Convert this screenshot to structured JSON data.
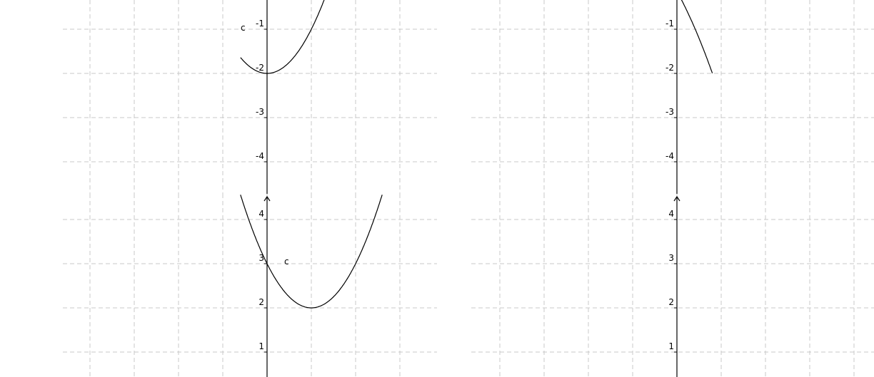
{
  "chart_data": [
    {
      "panel": "top-left",
      "type": "line",
      "function": "y = x^2 - 2",
      "x_range": [
        -0.6,
        1.3
      ],
      "ylim": [
        -4.6,
        0.6
      ],
      "y_ticks": [
        -1,
        -2,
        -3,
        -4
      ],
      "tick_labels": [
        "-1",
        "-2",
        "-3",
        "-4"
      ],
      "curve_label": "c",
      "grid": true
    },
    {
      "panel": "top-right",
      "type": "line",
      "function": "y = -c x^2, steep downward parabola",
      "x_range": [
        -2.8,
        0.8
      ],
      "ylim": [
        -4.6,
        0.6
      ],
      "y_ticks": [
        -1,
        -2,
        -3,
        -4
      ],
      "tick_labels": [
        "-1",
        "-2",
        "-3",
        "-4"
      ],
      "grid": true
    },
    {
      "panel": "bottom-left",
      "type": "line",
      "function": "y = (x - 1)^2 + 2",
      "x_range": [
        -0.6,
        2.6
      ],
      "ylim": [
        0,
        4.6
      ],
      "y_ticks": [
        1,
        2,
        3,
        4
      ],
      "tick_labels": [
        "1",
        "2",
        "3",
        "4"
      ],
      "curve_label": "c",
      "grid": true
    },
    {
      "panel": "bottom-right",
      "type": "line",
      "function": "none (empty axes)",
      "ylim": [
        0,
        4.6
      ],
      "y_ticks": [
        1,
        2,
        3,
        4
      ],
      "tick_labels": [
        "1",
        "2",
        "3",
        "4"
      ],
      "grid": true
    }
  ]
}
